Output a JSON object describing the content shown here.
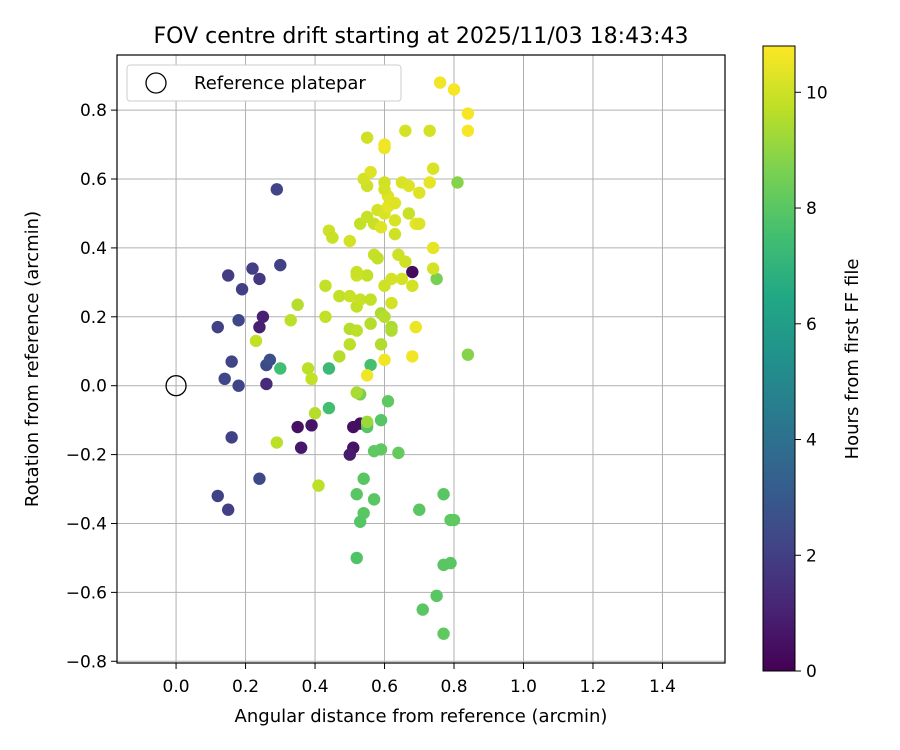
{
  "chart_data": {
    "type": "scatter",
    "title": "FOV centre drift starting at 2025/11/03 18:43:43",
    "xlabel": "Angular distance from reference (arcmin)",
    "ylabel": "Rotation from reference (arcmin)",
    "xlim": [
      -0.17,
      1.58
    ],
    "ylim": [
      -0.805,
      0.96
    ],
    "xticks": [
      0.0,
      0.2,
      0.4,
      0.6,
      0.8,
      1.0,
      1.2,
      1.4
    ],
    "xtick_labels": [
      "0.0",
      "0.2",
      "0.4",
      "0.6",
      "0.8",
      "1.0",
      "1.2",
      "1.4"
    ],
    "yticks": [
      -0.8,
      -0.6,
      -0.4,
      -0.2,
      0.0,
      0.2,
      0.4,
      0.6,
      0.8
    ],
    "ytick_labels": [
      "−0.8",
      "−0.6",
      "−0.4",
      "−0.2",
      "0.0",
      "0.2",
      "0.4",
      "0.6",
      "0.8"
    ],
    "grid": true,
    "legend": {
      "position": "top-left",
      "entries": [
        "Reference platepar"
      ]
    },
    "reference_point": {
      "x": 0.0,
      "y": 0.0,
      "label": "Reference platepar"
    },
    "colorbar": {
      "label": "Hours from first FF file",
      "min": 0,
      "max": 10.8,
      "ticks": [
        0,
        2,
        4,
        6,
        8,
        10
      ],
      "tick_labels": [
        "0",
        "2",
        "4",
        "6",
        "8",
        "10"
      ],
      "colormap": "viridis"
    },
    "points": [
      {
        "x": 0.68,
        "y": 0.33,
        "h": 0.3
      },
      {
        "x": 0.53,
        "y": -0.11,
        "h": 0.4
      },
      {
        "x": 0.51,
        "y": -0.12,
        "h": 0.4
      },
      {
        "x": 0.51,
        "y": -0.18,
        "h": 0.6
      },
      {
        "x": 0.5,
        "y": -0.2,
        "h": 0.8
      },
      {
        "x": 0.35,
        "y": -0.12,
        "h": 0.5
      },
      {
        "x": 0.36,
        "y": -0.18,
        "h": 0.7
      },
      {
        "x": 0.39,
        "y": -0.115,
        "h": 0.6
      },
      {
        "x": 0.24,
        "y": 0.17,
        "h": 0.9
      },
      {
        "x": 0.25,
        "y": 0.2,
        "h": 1.0
      },
      {
        "x": 0.26,
        "y": 0.005,
        "h": 1.3
      },
      {
        "x": 0.29,
        "y": 0.57,
        "h": 2.2
      },
      {
        "x": 0.22,
        "y": 0.34,
        "h": 2.0
      },
      {
        "x": 0.15,
        "y": 0.32,
        "h": 1.9
      },
      {
        "x": 0.24,
        "y": 0.31,
        "h": 1.8
      },
      {
        "x": 0.3,
        "y": 0.35,
        "h": 2.1
      },
      {
        "x": 0.19,
        "y": 0.28,
        "h": 2.0
      },
      {
        "x": 0.12,
        "y": 0.17,
        "h": 2.1
      },
      {
        "x": 0.18,
        "y": 0.19,
        "h": 2.3
      },
      {
        "x": 0.16,
        "y": 0.07,
        "h": 2.2
      },
      {
        "x": 0.14,
        "y": 0.02,
        "h": 2.3
      },
      {
        "x": 0.18,
        "y": -0.0,
        "h": 2.2
      },
      {
        "x": 0.16,
        "y": -0.15,
        "h": 2.1
      },
      {
        "x": 0.26,
        "y": 0.06,
        "h": 2.4
      },
      {
        "x": 0.27,
        "y": 0.075,
        "h": 2.6
      },
      {
        "x": 0.12,
        "y": -0.32,
        "h": 2.1
      },
      {
        "x": 0.15,
        "y": -0.36,
        "h": 2.0
      },
      {
        "x": 0.24,
        "y": -0.27,
        "h": 2.4
      },
      {
        "x": 0.3,
        "y": 0.05,
        "h": 7.5
      },
      {
        "x": 0.44,
        "y": 0.05,
        "h": 7.3
      },
      {
        "x": 0.44,
        "y": -0.065,
        "h": 7.5
      },
      {
        "x": 0.56,
        "y": 0.06,
        "h": 7.6
      },
      {
        "x": 0.55,
        "y": -0.11,
        "h": 7.9
      },
      {
        "x": 0.55,
        "y": -0.12,
        "h": 7.9
      },
      {
        "x": 0.59,
        "y": -0.1,
        "h": 7.9
      },
      {
        "x": 0.61,
        "y": -0.045,
        "h": 8.1
      },
      {
        "x": 0.64,
        "y": -0.195,
        "h": 8.2
      },
      {
        "x": 0.57,
        "y": -0.19,
        "h": 8.1
      },
      {
        "x": 0.59,
        "y": -0.185,
        "h": 8.1
      },
      {
        "x": 0.54,
        "y": -0.27,
        "h": 8.0
      },
      {
        "x": 0.52,
        "y": -0.315,
        "h": 8.0
      },
      {
        "x": 0.57,
        "y": -0.33,
        "h": 8.0
      },
      {
        "x": 0.54,
        "y": -0.37,
        "h": 8.0
      },
      {
        "x": 0.53,
        "y": -0.395,
        "h": 7.9
      },
      {
        "x": 0.52,
        "y": -0.5,
        "h": 7.8
      },
      {
        "x": 0.7,
        "y": -0.36,
        "h": 8.0
      },
      {
        "x": 0.77,
        "y": -0.315,
        "h": 8.0
      },
      {
        "x": 0.79,
        "y": -0.39,
        "h": 8.1
      },
      {
        "x": 0.8,
        "y": -0.39,
        "h": 8.1
      },
      {
        "x": 0.77,
        "y": -0.52,
        "h": 8.0
      },
      {
        "x": 0.79,
        "y": -0.515,
        "h": 8.0
      },
      {
        "x": 0.75,
        "y": -0.61,
        "h": 8.0
      },
      {
        "x": 0.71,
        "y": -0.65,
        "h": 8.0
      },
      {
        "x": 0.77,
        "y": -0.72,
        "h": 8.1
      },
      {
        "x": 0.75,
        "y": 0.31,
        "h": 8.6
      },
      {
        "x": 0.81,
        "y": 0.59,
        "h": 8.8
      },
      {
        "x": 0.84,
        "y": 0.09,
        "h": 8.8
      },
      {
        "x": 0.53,
        "y": -0.025,
        "h": 8.6
      },
      {
        "x": 0.52,
        "y": -0.02,
        "h": 9.4
      },
      {
        "x": 0.55,
        "y": -0.105,
        "h": 9.2
      },
      {
        "x": 0.4,
        "y": -0.08,
        "h": 9.6
      },
      {
        "x": 0.41,
        "y": -0.29,
        "h": 9.7
      },
      {
        "x": 0.29,
        "y": -0.165,
        "h": 9.7
      },
      {
        "x": 0.38,
        "y": 0.05,
        "h": 9.7
      },
      {
        "x": 0.39,
        "y": 0.02,
        "h": 9.8
      },
      {
        "x": 0.23,
        "y": 0.13,
        "h": 9.8
      },
      {
        "x": 0.33,
        "y": 0.19,
        "h": 9.7
      },
      {
        "x": 0.35,
        "y": 0.235,
        "h": 9.6
      },
      {
        "x": 0.43,
        "y": 0.2,
        "h": 9.8
      },
      {
        "x": 0.47,
        "y": 0.085,
        "h": 9.6
      },
      {
        "x": 0.5,
        "y": 0.12,
        "h": 9.7
      },
      {
        "x": 0.5,
        "y": 0.165,
        "h": 9.6
      },
      {
        "x": 0.52,
        "y": 0.16,
        "h": 9.7
      },
      {
        "x": 0.56,
        "y": 0.18,
        "h": 9.6
      },
      {
        "x": 0.59,
        "y": 0.12,
        "h": 9.5
      },
      {
        "x": 0.59,
        "y": 0.21,
        "h": 9.4
      },
      {
        "x": 0.62,
        "y": 0.17,
        "h": 9.4
      },
      {
        "x": 0.62,
        "y": 0.16,
        "h": 9.5
      },
      {
        "x": 0.6,
        "y": 0.2,
        "h": 9.6
      },
      {
        "x": 0.43,
        "y": 0.29,
        "h": 9.8
      },
      {
        "x": 0.47,
        "y": 0.26,
        "h": 9.8
      },
      {
        "x": 0.5,
        "y": 0.26,
        "h": 9.9
      },
      {
        "x": 0.52,
        "y": 0.23,
        "h": 9.8
      },
      {
        "x": 0.53,
        "y": 0.25,
        "h": 9.9
      },
      {
        "x": 0.56,
        "y": 0.25,
        "h": 9.8
      },
      {
        "x": 0.55,
        "y": 0.32,
        "h": 9.8
      },
      {
        "x": 0.52,
        "y": 0.32,
        "h": 10.0
      },
      {
        "x": 0.52,
        "y": 0.33,
        "h": 9.9
      },
      {
        "x": 0.6,
        "y": 0.29,
        "h": 10.0
      },
      {
        "x": 0.62,
        "y": 0.24,
        "h": 10.1
      },
      {
        "x": 0.62,
        "y": 0.31,
        "h": 10.1
      },
      {
        "x": 0.65,
        "y": 0.31,
        "h": 10.1
      },
      {
        "x": 0.66,
        "y": 0.36,
        "h": 10.0
      },
      {
        "x": 0.68,
        "y": 0.29,
        "h": 10.1
      },
      {
        "x": 0.64,
        "y": 0.38,
        "h": 10.0
      },
      {
        "x": 0.57,
        "y": 0.38,
        "h": 9.9
      },
      {
        "x": 0.58,
        "y": 0.37,
        "h": 9.8
      },
      {
        "x": 0.5,
        "y": 0.42,
        "h": 10.1
      },
      {
        "x": 0.44,
        "y": 0.45,
        "h": 10.0
      },
      {
        "x": 0.45,
        "y": 0.43,
        "h": 9.9
      },
      {
        "x": 0.53,
        "y": 0.47,
        "h": 9.8
      },
      {
        "x": 0.55,
        "y": 0.49,
        "h": 9.9
      },
      {
        "x": 0.57,
        "y": 0.47,
        "h": 9.9
      },
      {
        "x": 0.59,
        "y": 0.46,
        "h": 10.3
      },
      {
        "x": 0.58,
        "y": 0.51,
        "h": 10.1
      },
      {
        "x": 0.6,
        "y": 0.5,
        "h": 10.2
      },
      {
        "x": 0.61,
        "y": 0.52,
        "h": 10.4
      },
      {
        "x": 0.63,
        "y": 0.48,
        "h": 10.2
      },
      {
        "x": 0.63,
        "y": 0.53,
        "h": 10.3
      },
      {
        "x": 0.61,
        "y": 0.55,
        "h": 10.3
      },
      {
        "x": 0.63,
        "y": 0.44,
        "h": 10.0
      },
      {
        "x": 0.67,
        "y": 0.5,
        "h": 9.9
      },
      {
        "x": 0.69,
        "y": 0.47,
        "h": 10.4
      },
      {
        "x": 0.7,
        "y": 0.47,
        "h": 10.3
      },
      {
        "x": 0.7,
        "y": 0.56,
        "h": 10.3
      },
      {
        "x": 0.67,
        "y": 0.58,
        "h": 10.3
      },
      {
        "x": 0.65,
        "y": 0.59,
        "h": 10.2
      },
      {
        "x": 0.6,
        "y": 0.59,
        "h": 10.0
      },
      {
        "x": 0.6,
        "y": 0.57,
        "h": 10.1
      },
      {
        "x": 0.55,
        "y": 0.58,
        "h": 10.0
      },
      {
        "x": 0.54,
        "y": 0.6,
        "h": 10.1
      },
      {
        "x": 0.56,
        "y": 0.62,
        "h": 10.3
      },
      {
        "x": 0.73,
        "y": 0.59,
        "h": 10.4
      },
      {
        "x": 0.74,
        "y": 0.63,
        "h": 10.2
      },
      {
        "x": 0.74,
        "y": 0.4,
        "h": 10.4
      },
      {
        "x": 0.74,
        "y": 0.34,
        "h": 10.1
      },
      {
        "x": 0.69,
        "y": 0.17,
        "h": 10.5
      },
      {
        "x": 0.68,
        "y": 0.085,
        "h": 10.6
      },
      {
        "x": 0.6,
        "y": 0.075,
        "h": 10.6
      },
      {
        "x": 0.55,
        "y": 0.03,
        "h": 10.6
      },
      {
        "x": 0.55,
        "y": 0.72,
        "h": 10.0
      },
      {
        "x": 0.6,
        "y": 0.69,
        "h": 10.5
      },
      {
        "x": 0.6,
        "y": 0.7,
        "h": 10.6
      },
      {
        "x": 0.66,
        "y": 0.74,
        "h": 10.1
      },
      {
        "x": 0.73,
        "y": 0.74,
        "h": 10.1
      },
      {
        "x": 0.76,
        "y": 0.88,
        "h": 10.6
      },
      {
        "x": 0.8,
        "y": 0.86,
        "h": 10.7
      },
      {
        "x": 0.84,
        "y": 0.79,
        "h": 10.7
      },
      {
        "x": 0.84,
        "y": 0.74,
        "h": 10.7
      }
    ]
  }
}
